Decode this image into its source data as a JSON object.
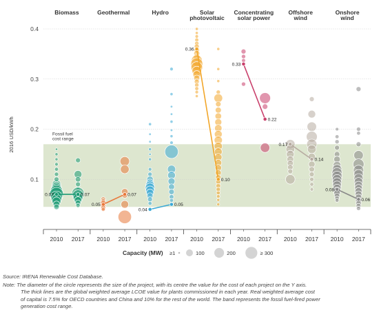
{
  "chart_data": {
    "type": "scatter",
    "ylabel": "2016 USD/kWh",
    "ylim": [
      0,
      0.4
    ],
    "yticks": [
      0.1,
      0.2,
      0.3,
      0.4
    ],
    "fossil_band": {
      "label": [
        "Fossil fuel",
        "cost range"
      ],
      "range": [
        0.045,
        0.17
      ]
    },
    "groups": [
      {
        "name": "Biomass",
        "name_lines": [
          "Biomass"
        ],
        "color": "#1b9a74",
        "years": [
          "2010",
          "2017"
        ],
        "weighted_avg": [
          0.07,
          0.07
        ],
        "labels": [
          "0.07",
          "0.07"
        ],
        "points": [
          [
            [
              0.09,
              25
            ],
            [
              0.085,
              30
            ],
            [
              0.08,
              40
            ],
            [
              0.075,
              55
            ],
            [
              0.07,
              65
            ],
            [
              0.065,
              45
            ],
            [
              0.06,
              35
            ],
            [
              0.056,
              25
            ],
            [
              0.05,
              15
            ],
            [
              0.045,
              10
            ],
            [
              0.1,
              8
            ],
            [
              0.11,
              6
            ],
            [
              0.12,
              5
            ],
            [
              0.13,
              4
            ],
            [
              0.14,
              3
            ],
            [
              0.15,
              3
            ],
            [
              0.16,
              2
            ]
          ],
          [
            [
              0.138,
              8
            ],
            [
              0.11,
              20
            ],
            [
              0.1,
              10
            ],
            [
              0.09,
              8
            ],
            [
              0.08,
              6
            ],
            [
              0.072,
              50
            ],
            [
              0.068,
              40
            ],
            [
              0.063,
              30
            ],
            [
              0.058,
              18
            ],
            [
              0.053,
              10
            ],
            [
              0.048,
              6
            ]
          ]
        ]
      },
      {
        "name": "Geothermal",
        "name_lines": [
          "Geothermal"
        ],
        "color": "#e8783a",
        "years": [
          "2010",
          "2017"
        ],
        "weighted_avg": [
          0.05,
          0.07
        ],
        "labels": [
          "0.05",
          "0.07"
        ],
        "points": [
          [
            [
              0.06,
              8
            ],
            [
              0.057,
              6
            ],
            [
              0.052,
              12
            ],
            [
              0.048,
              10
            ],
            [
              0.043,
              8
            ],
            [
              0.04,
              5
            ]
          ],
          [
            [
              0.136,
              30
            ],
            [
              0.12,
              25
            ],
            [
              0.075,
              15
            ],
            [
              0.068,
              10
            ],
            [
              0.05,
              20
            ],
            [
              0.025,
              60
            ]
          ]
        ]
      },
      {
        "name": "Hydro",
        "name_lines": [
          "Hydro"
        ],
        "color": "#3aa9d6",
        "years": [
          "2010",
          "2017"
        ],
        "weighted_avg": [
          0.04,
          0.05
        ],
        "labels": [
          "0.04",
          "0.05"
        ],
        "points": [
          [
            [
              0.21,
              3
            ],
            [
              0.19,
              2
            ],
            [
              0.175,
              2
            ],
            [
              0.16,
              3
            ],
            [
              0.15,
              2
            ],
            [
              0.14,
              3
            ],
            [
              0.12,
              4
            ],
            [
              0.11,
              6
            ],
            [
              0.1,
              14
            ],
            [
              0.093,
              18
            ],
            [
              0.088,
              25
            ],
            [
              0.083,
              30
            ],
            [
              0.078,
              25
            ],
            [
              0.073,
              18
            ],
            [
              0.067,
              12
            ],
            [
              0.06,
              8
            ],
            [
              0.052,
              5
            ]
          ],
          [
            [
              0.32,
              4
            ],
            [
              0.27,
              3
            ],
            [
              0.245,
              2
            ],
            [
              0.23,
              2
            ],
            [
              0.215,
              3
            ],
            [
              0.198,
              2
            ],
            [
              0.186,
              3
            ],
            [
              0.173,
              4
            ],
            [
              0.155,
              60
            ],
            [
              0.12,
              22
            ],
            [
              0.108,
              20
            ],
            [
              0.096,
              16
            ],
            [
              0.085,
              12
            ],
            [
              0.075,
              10
            ],
            [
              0.065,
              7
            ],
            [
              0.058,
              5
            ]
          ]
        ]
      },
      {
        "name": "Solar photovoltaic",
        "name_lines": [
          "Solar",
          "photovoltaic"
        ],
        "color": "#f2a629",
        "years": [
          "2010",
          "2017"
        ],
        "weighted_avg": [
          0.36,
          0.1
        ],
        "labels": [
          "0.36",
          "0.10"
        ],
        "points": [
          [
            [
              0.4,
              3
            ],
            [
              0.392,
              3
            ],
            [
              0.385,
              4
            ],
            [
              0.378,
              5
            ],
            [
              0.371,
              6
            ],
            [
              0.365,
              8
            ],
            [
              0.358,
              10
            ],
            [
              0.351,
              12
            ],
            [
              0.344,
              14
            ],
            [
              0.337,
              40
            ],
            [
              0.33,
              50
            ],
            [
              0.323,
              45
            ],
            [
              0.316,
              30
            ],
            [
              0.309,
              20
            ],
            [
              0.302,
              12
            ],
            [
              0.295,
              8
            ],
            [
              0.288,
              6
            ],
            [
              0.281,
              5
            ],
            [
              0.274,
              4
            ],
            [
              0.266,
              3
            ]
          ],
          [
            [
              0.36,
              3
            ],
            [
              0.32,
              3
            ],
            [
              0.296,
              3
            ],
            [
              0.274,
              6
            ],
            [
              0.262,
              25
            ],
            [
              0.25,
              10
            ],
            [
              0.238,
              12
            ],
            [
              0.226,
              14
            ],
            [
              0.214,
              16
            ],
            [
              0.202,
              18
            ],
            [
              0.19,
              20
            ],
            [
              0.178,
              22
            ],
            [
              0.166,
              22
            ],
            [
              0.155,
              20
            ],
            [
              0.144,
              18
            ],
            [
              0.133,
              16
            ],
            [
              0.123,
              14
            ],
            [
              0.113,
              12
            ],
            [
              0.104,
              10
            ],
            [
              0.095,
              8
            ],
            [
              0.087,
              7
            ],
            [
              0.08,
              6
            ],
            [
              0.073,
              5
            ],
            [
              0.066,
              4
            ],
            [
              0.059,
              3
            ],
            [
              0.05,
              3
            ]
          ]
        ]
      },
      {
        "name": "Concentrating solar power",
        "name_lines": [
          "Concentrating",
          "solar power"
        ],
        "color": "#c9406c",
        "years": [
          "2010",
          "2017"
        ],
        "weighted_avg": [
          0.33,
          0.22
        ],
        "labels": [
          "0.33",
          "0.22"
        ],
        "points": [
          [
            [
              0.355,
              8
            ],
            [
              0.345,
              6
            ],
            [
              0.337,
              5
            ],
            [
              0.33,
              5
            ],
            [
              0.29,
              6
            ]
          ],
          [
            [
              0.262,
              40
            ],
            [
              0.245,
              10
            ],
            [
              0.163,
              30
            ]
          ]
        ]
      },
      {
        "name": "Offshore wind",
        "name_lines": [
          "Offshore",
          "wind"
        ],
        "color": "#b7aba1",
        "years": [
          "2010",
          "2017"
        ],
        "weighted_avg": [
          0.17,
          0.14
        ],
        "labels": [
          "0.17",
          "0.14"
        ],
        "points": [
          [
            [
              0.17,
              30
            ],
            [
              0.16,
              25
            ],
            [
              0.15,
              20
            ],
            [
              0.14,
              15
            ],
            [
              0.132,
              12
            ],
            [
              0.124,
              10
            ],
            [
              0.116,
              8
            ],
            [
              0.1,
              30
            ]
          ],
          [
            [
              0.26,
              8
            ],
            [
              0.23,
              20
            ],
            [
              0.205,
              30
            ],
            [
              0.185,
              40
            ],
            [
              0.17,
              35
            ],
            [
              0.16,
              25
            ],
            [
              0.145,
              18
            ],
            [
              0.13,
              14
            ],
            [
              0.12,
              10
            ],
            [
              0.11,
              8
            ],
            [
              0.1,
              6
            ],
            [
              0.09,
              5
            ],
            [
              0.08,
              4
            ]
          ]
        ]
      },
      {
        "name": "Onshore wind",
        "name_lines": [
          "Onshore",
          "wind"
        ],
        "color": "#888888",
        "years": [
          "2010",
          "2017"
        ],
        "weighted_avg": [
          0.08,
          0.06
        ],
        "labels": [
          "0.08",
          "0.06"
        ],
        "points": [
          [
            [
              0.2,
              4
            ],
            [
              0.185,
              5
            ],
            [
              0.175,
              6
            ],
            [
              0.163,
              8
            ],
            [
              0.15,
              10
            ],
            [
              0.14,
              14
            ],
            [
              0.128,
              20
            ],
            [
              0.12,
              30
            ],
            [
              0.113,
              35
            ],
            [
              0.106,
              35
            ],
            [
              0.1,
              30
            ],
            [
              0.094,
              28
            ],
            [
              0.088,
              25
            ],
            [
              0.082,
              22
            ],
            [
              0.077,
              18
            ],
            [
              0.072,
              14
            ],
            [
              0.067,
              10
            ],
            [
              0.062,
              7
            ],
            [
              0.058,
              5
            ]
          ],
          [
            [
              0.28,
              8
            ],
            [
              0.2,
              6
            ],
            [
              0.192,
              5
            ],
            [
              0.17,
              8
            ],
            [
              0.148,
              30
            ],
            [
              0.13,
              40
            ],
            [
              0.118,
              35
            ],
            [
              0.11,
              30
            ],
            [
              0.102,
              28
            ],
            [
              0.095,
              25
            ],
            [
              0.088,
              22
            ],
            [
              0.082,
              20
            ],
            [
              0.076,
              18
            ],
            [
              0.07,
              16
            ],
            [
              0.064,
              14
            ],
            [
              0.058,
              12
            ],
            [
              0.052,
              10
            ],
            [
              0.047,
              8
            ],
            [
              0.042,
              6
            ]
          ]
        ]
      }
    ]
  },
  "legend": {
    "title": "Capacity (MW)",
    "items": [
      {
        "label": "≥1",
        "size": 1
      },
      {
        "label": "100",
        "size": 100
      },
      {
        "label": "200",
        "size": 200
      },
      {
        "label": "≥ 300",
        "size": 300
      }
    ]
  },
  "source": "Source: IRENA Renewable Cost Database.",
  "note_lines": [
    "Note: The diameter of the circle represents the size of the project, with its centre the value for the cost of each project on the Y axis.",
    "The thick lines are the global weighted average LCOE value for plants commissioned in each year. Real weighted average cost",
    "of capital is 7.5% for OECD countries and China and 10% for the rest of the world. The band represents the fossil fuel-fired power",
    "generation cost range."
  ]
}
